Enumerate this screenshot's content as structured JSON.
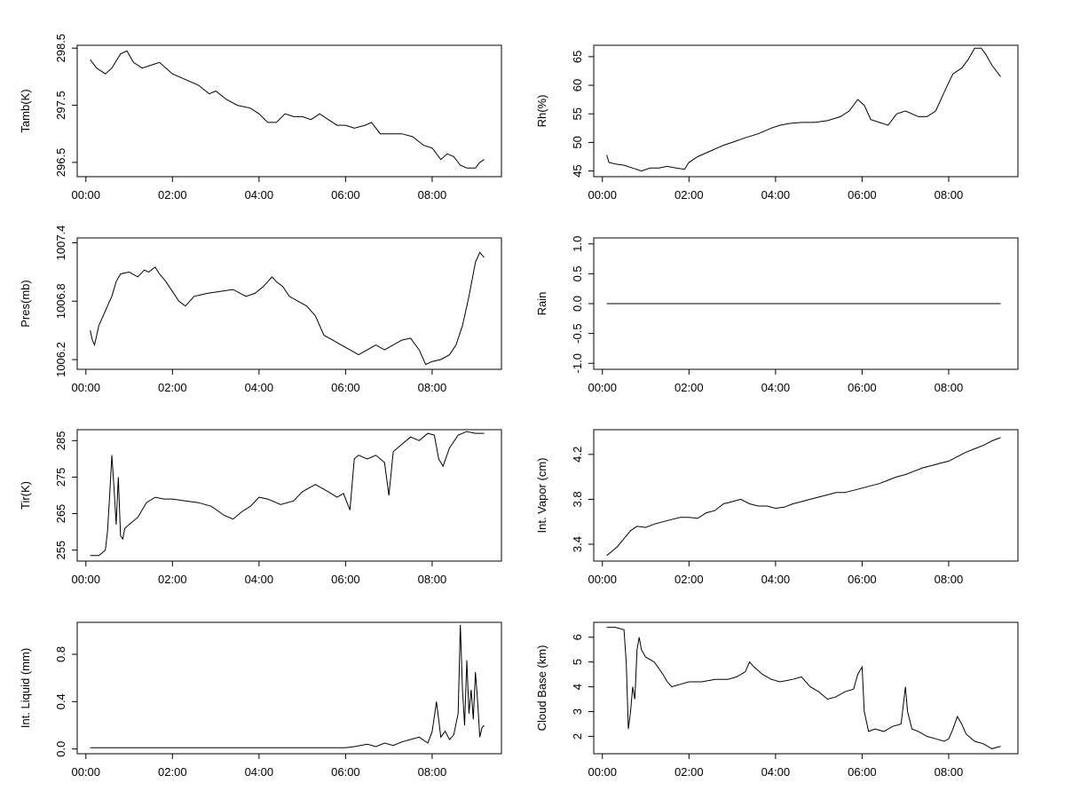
{
  "chart_data": [
    {
      "type": "line",
      "ylabel": "Tamb(K)",
      "ylim": [
        296.25,
        298.55
      ],
      "yticks": [
        "296.5",
        "297.5",
        "298.5"
      ],
      "ytick_values": [
        296.5,
        297.5,
        298.5
      ],
      "xticks": [
        "00:00",
        "02:00",
        "04:00",
        "06:00",
        "08:00"
      ],
      "xtick_values": [
        0,
        2,
        4,
        6,
        8
      ],
      "xlim": [
        -0.2,
        9.6
      ],
      "series": [
        {
          "x": [
            0.1,
            0.25,
            0.45,
            0.6,
            0.8,
            0.95,
            1.1,
            1.3,
            1.5,
            1.7,
            1.85,
            2.0,
            2.3,
            2.6,
            2.85,
            3.0,
            3.25,
            3.5,
            3.8,
            4.0,
            4.2,
            4.4,
            4.6,
            4.8,
            5.0,
            5.2,
            5.4,
            5.6,
            5.8,
            6.0,
            6.2,
            6.45,
            6.6,
            6.8,
            7.0,
            7.3,
            7.55,
            7.8,
            8.0,
            8.2,
            8.35,
            8.5,
            8.65,
            8.8,
            9.0,
            9.1,
            9.2
          ],
          "y": [
            298.3,
            298.15,
            298.05,
            298.15,
            298.4,
            298.45,
            298.25,
            298.15,
            298.2,
            298.25,
            298.15,
            298.05,
            297.95,
            297.85,
            297.7,
            297.75,
            297.6,
            297.5,
            297.45,
            297.35,
            297.2,
            297.2,
            297.35,
            297.3,
            297.3,
            297.25,
            297.35,
            297.25,
            297.15,
            297.15,
            297.1,
            297.15,
            297.2,
            297.0,
            297.0,
            297.0,
            296.95,
            296.8,
            296.75,
            296.55,
            296.65,
            296.6,
            296.45,
            296.4,
            296.4,
            296.5,
            296.55
          ]
        }
      ]
    },
    {
      "type": "line",
      "ylabel": "Rh(%)",
      "ylim": [
        44,
        67
      ],
      "yticks": [
        "45",
        "50",
        "55",
        "60",
        "65"
      ],
      "ytick_values": [
        45,
        50,
        55,
        60,
        65
      ],
      "xticks": [
        "00:00",
        "02:00",
        "04:00",
        "06:00",
        "08:00"
      ],
      "xtick_values": [
        0,
        2,
        4,
        6,
        8
      ],
      "xlim": [
        -0.2,
        9.6
      ],
      "series": [
        {
          "x": [
            0.1,
            0.15,
            0.3,
            0.5,
            0.7,
            0.9,
            1.1,
            1.3,
            1.5,
            1.7,
            1.9,
            2.0,
            2.2,
            2.5,
            2.8,
            3.0,
            3.3,
            3.6,
            3.9,
            4.1,
            4.3,
            4.6,
            4.9,
            5.2,
            5.5,
            5.7,
            5.9,
            6.05,
            6.2,
            6.4,
            6.6,
            6.8,
            7.0,
            7.3,
            7.5,
            7.7,
            7.85,
            8.0,
            8.1,
            8.3,
            8.45,
            8.6,
            8.75,
            8.85,
            9.0,
            9.1,
            9.2
          ],
          "y": [
            47.8,
            46.5,
            46.2,
            46.0,
            45.5,
            45.0,
            45.5,
            45.5,
            45.8,
            45.5,
            45.3,
            46.5,
            47.5,
            48.5,
            49.5,
            50.0,
            50.8,
            51.5,
            52.5,
            53.0,
            53.3,
            53.5,
            53.5,
            53.8,
            54.5,
            55.5,
            57.5,
            56.5,
            54.0,
            53.5,
            53.0,
            55.0,
            55.5,
            54.5,
            54.5,
            55.5,
            58.0,
            60.5,
            62.0,
            63.0,
            64.5,
            66.5,
            66.5,
            65.5,
            63.5,
            62.5,
            61.5
          ]
        }
      ]
    },
    {
      "type": "line",
      "ylabel": "Pres(mb)",
      "ylim": [
        1006.1,
        1007.45
      ],
      "yticks": [
        "1006.2",
        "1006.8",
        "1007.4"
      ],
      "ytick_values": [
        1006.2,
        1006.8,
        1007.4
      ],
      "xticks": [
        "00:00",
        "02:00",
        "04:00",
        "06:00",
        "08:00"
      ],
      "xtick_values": [
        0,
        2,
        4,
        6,
        8
      ],
      "xlim": [
        -0.2,
        9.6
      ],
      "series": [
        {
          "x": [
            0.1,
            0.15,
            0.2,
            0.3,
            0.4,
            0.5,
            0.6,
            0.7,
            0.8,
            1.0,
            1.2,
            1.35,
            1.45,
            1.6,
            1.7,
            1.85,
            2.0,
            2.15,
            2.3,
            2.5,
            2.8,
            3.1,
            3.4,
            3.7,
            3.9,
            4.1,
            4.3,
            4.4,
            4.55,
            4.7,
            4.9,
            5.1,
            5.3,
            5.5,
            5.7,
            5.9,
            6.1,
            6.3,
            6.5,
            6.7,
            6.9,
            7.1,
            7.3,
            7.5,
            7.7,
            7.85,
            8.0,
            8.2,
            8.4,
            8.55,
            8.7,
            8.85,
            9.0,
            9.1,
            9.2
          ],
          "y": [
            1006.5,
            1006.4,
            1006.35,
            1006.55,
            1006.65,
            1006.75,
            1006.85,
            1007.0,
            1007.08,
            1007.1,
            1007.05,
            1007.12,
            1007.1,
            1007.15,
            1007.08,
            1007.0,
            1006.9,
            1006.8,
            1006.75,
            1006.85,
            1006.88,
            1006.9,
            1006.92,
            1006.85,
            1006.88,
            1006.95,
            1007.05,
            1007.0,
            1006.95,
            1006.85,
            1006.8,
            1006.75,
            1006.65,
            1006.45,
            1006.4,
            1006.35,
            1006.3,
            1006.25,
            1006.3,
            1006.35,
            1006.3,
            1006.35,
            1006.4,
            1006.42,
            1006.3,
            1006.15,
            1006.18,
            1006.2,
            1006.25,
            1006.35,
            1006.55,
            1006.85,
            1007.2,
            1007.3,
            1007.25
          ]
        }
      ]
    },
    {
      "type": "line",
      "ylabel": "Rain",
      "ylim": [
        -1.1,
        1.1
      ],
      "yticks": [
        "-1.0",
        "-0.5",
        "0.0",
        "0.5",
        "1.0"
      ],
      "ytick_values": [
        -1.0,
        -0.5,
        0.0,
        0.5,
        1.0
      ],
      "xticks": [
        "00:00",
        "02:00",
        "04:00",
        "06:00",
        "08:00"
      ],
      "xtick_values": [
        0,
        2,
        4,
        6,
        8
      ],
      "xlim": [
        -0.2,
        9.6
      ],
      "series": [
        {
          "x": [
            0.1,
            9.2
          ],
          "y": [
            0.0,
            0.0
          ]
        }
      ]
    },
    {
      "type": "line",
      "ylabel": "Tir(K)",
      "ylim": [
        252,
        288
      ],
      "yticks": [
        "255",
        "265",
        "275",
        "285"
      ],
      "ytick_values": [
        255,
        265,
        275,
        285
      ],
      "xticks": [
        "00:00",
        "02:00",
        "04:00",
        "06:00",
        "08:00"
      ],
      "xtick_values": [
        0,
        2,
        4,
        6,
        8
      ],
      "xlim": [
        -0.2,
        9.6
      ],
      "series": [
        {
          "x": [
            0.1,
            0.3,
            0.45,
            0.5,
            0.55,
            0.6,
            0.65,
            0.7,
            0.75,
            0.8,
            0.85,
            0.9,
            1.0,
            1.2,
            1.4,
            1.6,
            1.8,
            2.0,
            2.3,
            2.6,
            2.9,
            3.2,
            3.4,
            3.6,
            3.8,
            4.0,
            4.2,
            4.5,
            4.8,
            5.0,
            5.3,
            5.6,
            5.8,
            5.95,
            6.1,
            6.2,
            6.3,
            6.5,
            6.7,
            6.9,
            7.0,
            7.1,
            7.3,
            7.5,
            7.7,
            7.9,
            8.05,
            8.15,
            8.25,
            8.4,
            8.6,
            8.8,
            9.0,
            9.2
          ],
          "y": [
            253.5,
            253.5,
            255,
            260,
            270,
            281,
            272,
            262,
            275,
            259,
            258,
            261,
            262,
            264,
            268,
            269.5,
            269,
            269,
            268.5,
            268,
            267,
            264.5,
            263.5,
            265.5,
            267,
            269.5,
            269,
            267.5,
            268.5,
            271,
            273,
            271,
            269.5,
            270.5,
            266,
            280,
            281,
            280,
            281,
            279,
            270,
            282,
            284,
            286,
            285,
            287,
            286.5,
            280,
            278,
            283,
            286.5,
            287.5,
            287,
            287
          ]
        }
      ]
    },
    {
      "type": "line",
      "ylabel": "Int. Vapor (cm)",
      "ylim": [
        3.25,
        4.42
      ],
      "yticks": [
        "3.4",
        "3.8",
        "4.2"
      ],
      "ytick_values": [
        3.4,
        3.8,
        4.2
      ],
      "xticks": [
        "00:00",
        "02:00",
        "04:00",
        "06:00",
        "08:00"
      ],
      "xtick_values": [
        0,
        2,
        4,
        6,
        8
      ],
      "xlim": [
        -0.2,
        9.6
      ],
      "series": [
        {
          "x": [
            0.1,
            0.2,
            0.35,
            0.5,
            0.65,
            0.8,
            1.0,
            1.2,
            1.4,
            1.6,
            1.8,
            2.0,
            2.2,
            2.4,
            2.6,
            2.8,
            3.0,
            3.2,
            3.4,
            3.6,
            3.8,
            4.0,
            4.2,
            4.4,
            4.6,
            4.8,
            5.0,
            5.2,
            5.4,
            5.6,
            5.8,
            6.0,
            6.2,
            6.4,
            6.6,
            6.8,
            7.0,
            7.2,
            7.4,
            7.6,
            7.8,
            8.0,
            8.2,
            8.4,
            8.6,
            8.8,
            9.0,
            9.2
          ],
          "y": [
            3.3,
            3.33,
            3.38,
            3.45,
            3.52,
            3.56,
            3.55,
            3.58,
            3.6,
            3.62,
            3.64,
            3.64,
            3.63,
            3.68,
            3.7,
            3.76,
            3.78,
            3.8,
            3.76,
            3.74,
            3.74,
            3.72,
            3.73,
            3.76,
            3.78,
            3.8,
            3.82,
            3.84,
            3.86,
            3.86,
            3.88,
            3.9,
            3.92,
            3.94,
            3.97,
            4.0,
            4.02,
            4.05,
            4.08,
            4.1,
            4.12,
            4.14,
            4.18,
            4.22,
            4.25,
            4.28,
            4.32,
            4.35
          ]
        }
      ]
    },
    {
      "type": "line",
      "ylabel": "Int. Liquid (mm)",
      "ylim": [
        -0.04,
        1.07
      ],
      "yticks": [
        "0.0",
        "0.4",
        "0.8"
      ],
      "ytick_values": [
        0.0,
        0.4,
        0.8
      ],
      "xticks": [
        "00:00",
        "02:00",
        "04:00",
        "06:00",
        "08:00"
      ],
      "xtick_values": [
        0,
        2,
        4,
        6,
        8
      ],
      "xlim": [
        -0.2,
        9.6
      ],
      "series": [
        {
          "x": [
            0.1,
            6.0,
            6.2,
            6.5,
            6.7,
            6.9,
            7.1,
            7.3,
            7.5,
            7.7,
            7.9,
            8.0,
            8.1,
            8.2,
            8.3,
            8.4,
            8.5,
            8.6,
            8.65,
            8.7,
            8.75,
            8.8,
            8.85,
            8.9,
            8.95,
            9.0,
            9.05,
            9.1,
            9.15,
            9.2
          ],
          "y": [
            0.01,
            0.01,
            0.02,
            0.04,
            0.02,
            0.05,
            0.03,
            0.06,
            0.08,
            0.1,
            0.05,
            0.15,
            0.4,
            0.1,
            0.15,
            0.08,
            0.12,
            0.3,
            1.05,
            0.5,
            0.2,
            0.75,
            0.3,
            0.5,
            0.25,
            0.65,
            0.4,
            0.1,
            0.18,
            0.2
          ]
        }
      ]
    },
    {
      "type": "line",
      "ylabel": "Cloud Base (km)",
      "ylim": [
        1.3,
        6.6
      ],
      "yticks": [
        "2",
        "3",
        "4",
        "5",
        "6"
      ],
      "ytick_values": [
        2,
        3,
        4,
        5,
        6
      ],
      "xticks": [
        "00:00",
        "02:00",
        "04:00",
        "06:00",
        "08:00"
      ],
      "xtick_values": [
        0,
        2,
        4,
        6,
        8
      ],
      "xlim": [
        -0.2,
        9.6
      ],
      "series": [
        {
          "x": [
            0.1,
            0.3,
            0.5,
            0.55,
            0.6,
            0.65,
            0.7,
            0.75,
            0.8,
            0.85,
            0.9,
            1.0,
            1.2,
            1.4,
            1.5,
            1.6,
            1.8,
            2.0,
            2.3,
            2.6,
            2.9,
            3.1,
            3.3,
            3.4,
            3.5,
            3.7,
            3.9,
            4.1,
            4.4,
            4.6,
            4.8,
            5.0,
            5.2,
            5.4,
            5.6,
            5.8,
            5.9,
            6.0,
            6.05,
            6.15,
            6.3,
            6.5,
            6.7,
            6.9,
            7.0,
            7.05,
            7.15,
            7.3,
            7.5,
            7.7,
            7.9,
            8.0,
            8.1,
            8.2,
            8.3,
            8.4,
            8.6,
            8.8,
            9.0,
            9.2
          ],
          "y": [
            6.4,
            6.4,
            6.3,
            5.0,
            2.3,
            3.0,
            4.0,
            3.5,
            5.5,
            6.0,
            5.5,
            5.2,
            5.0,
            4.5,
            4.2,
            4.0,
            4.1,
            4.2,
            4.2,
            4.3,
            4.3,
            4.4,
            4.6,
            5.0,
            4.8,
            4.5,
            4.3,
            4.2,
            4.3,
            4.4,
            4.0,
            3.8,
            3.5,
            3.6,
            3.8,
            3.9,
            4.5,
            4.8,
            3.0,
            2.2,
            2.3,
            2.2,
            2.4,
            2.5,
            4.0,
            3.0,
            2.3,
            2.2,
            2.0,
            1.9,
            1.8,
            1.9,
            2.3,
            2.8,
            2.5,
            2.1,
            1.8,
            1.7,
            1.5,
            1.6
          ]
        }
      ]
    }
  ]
}
